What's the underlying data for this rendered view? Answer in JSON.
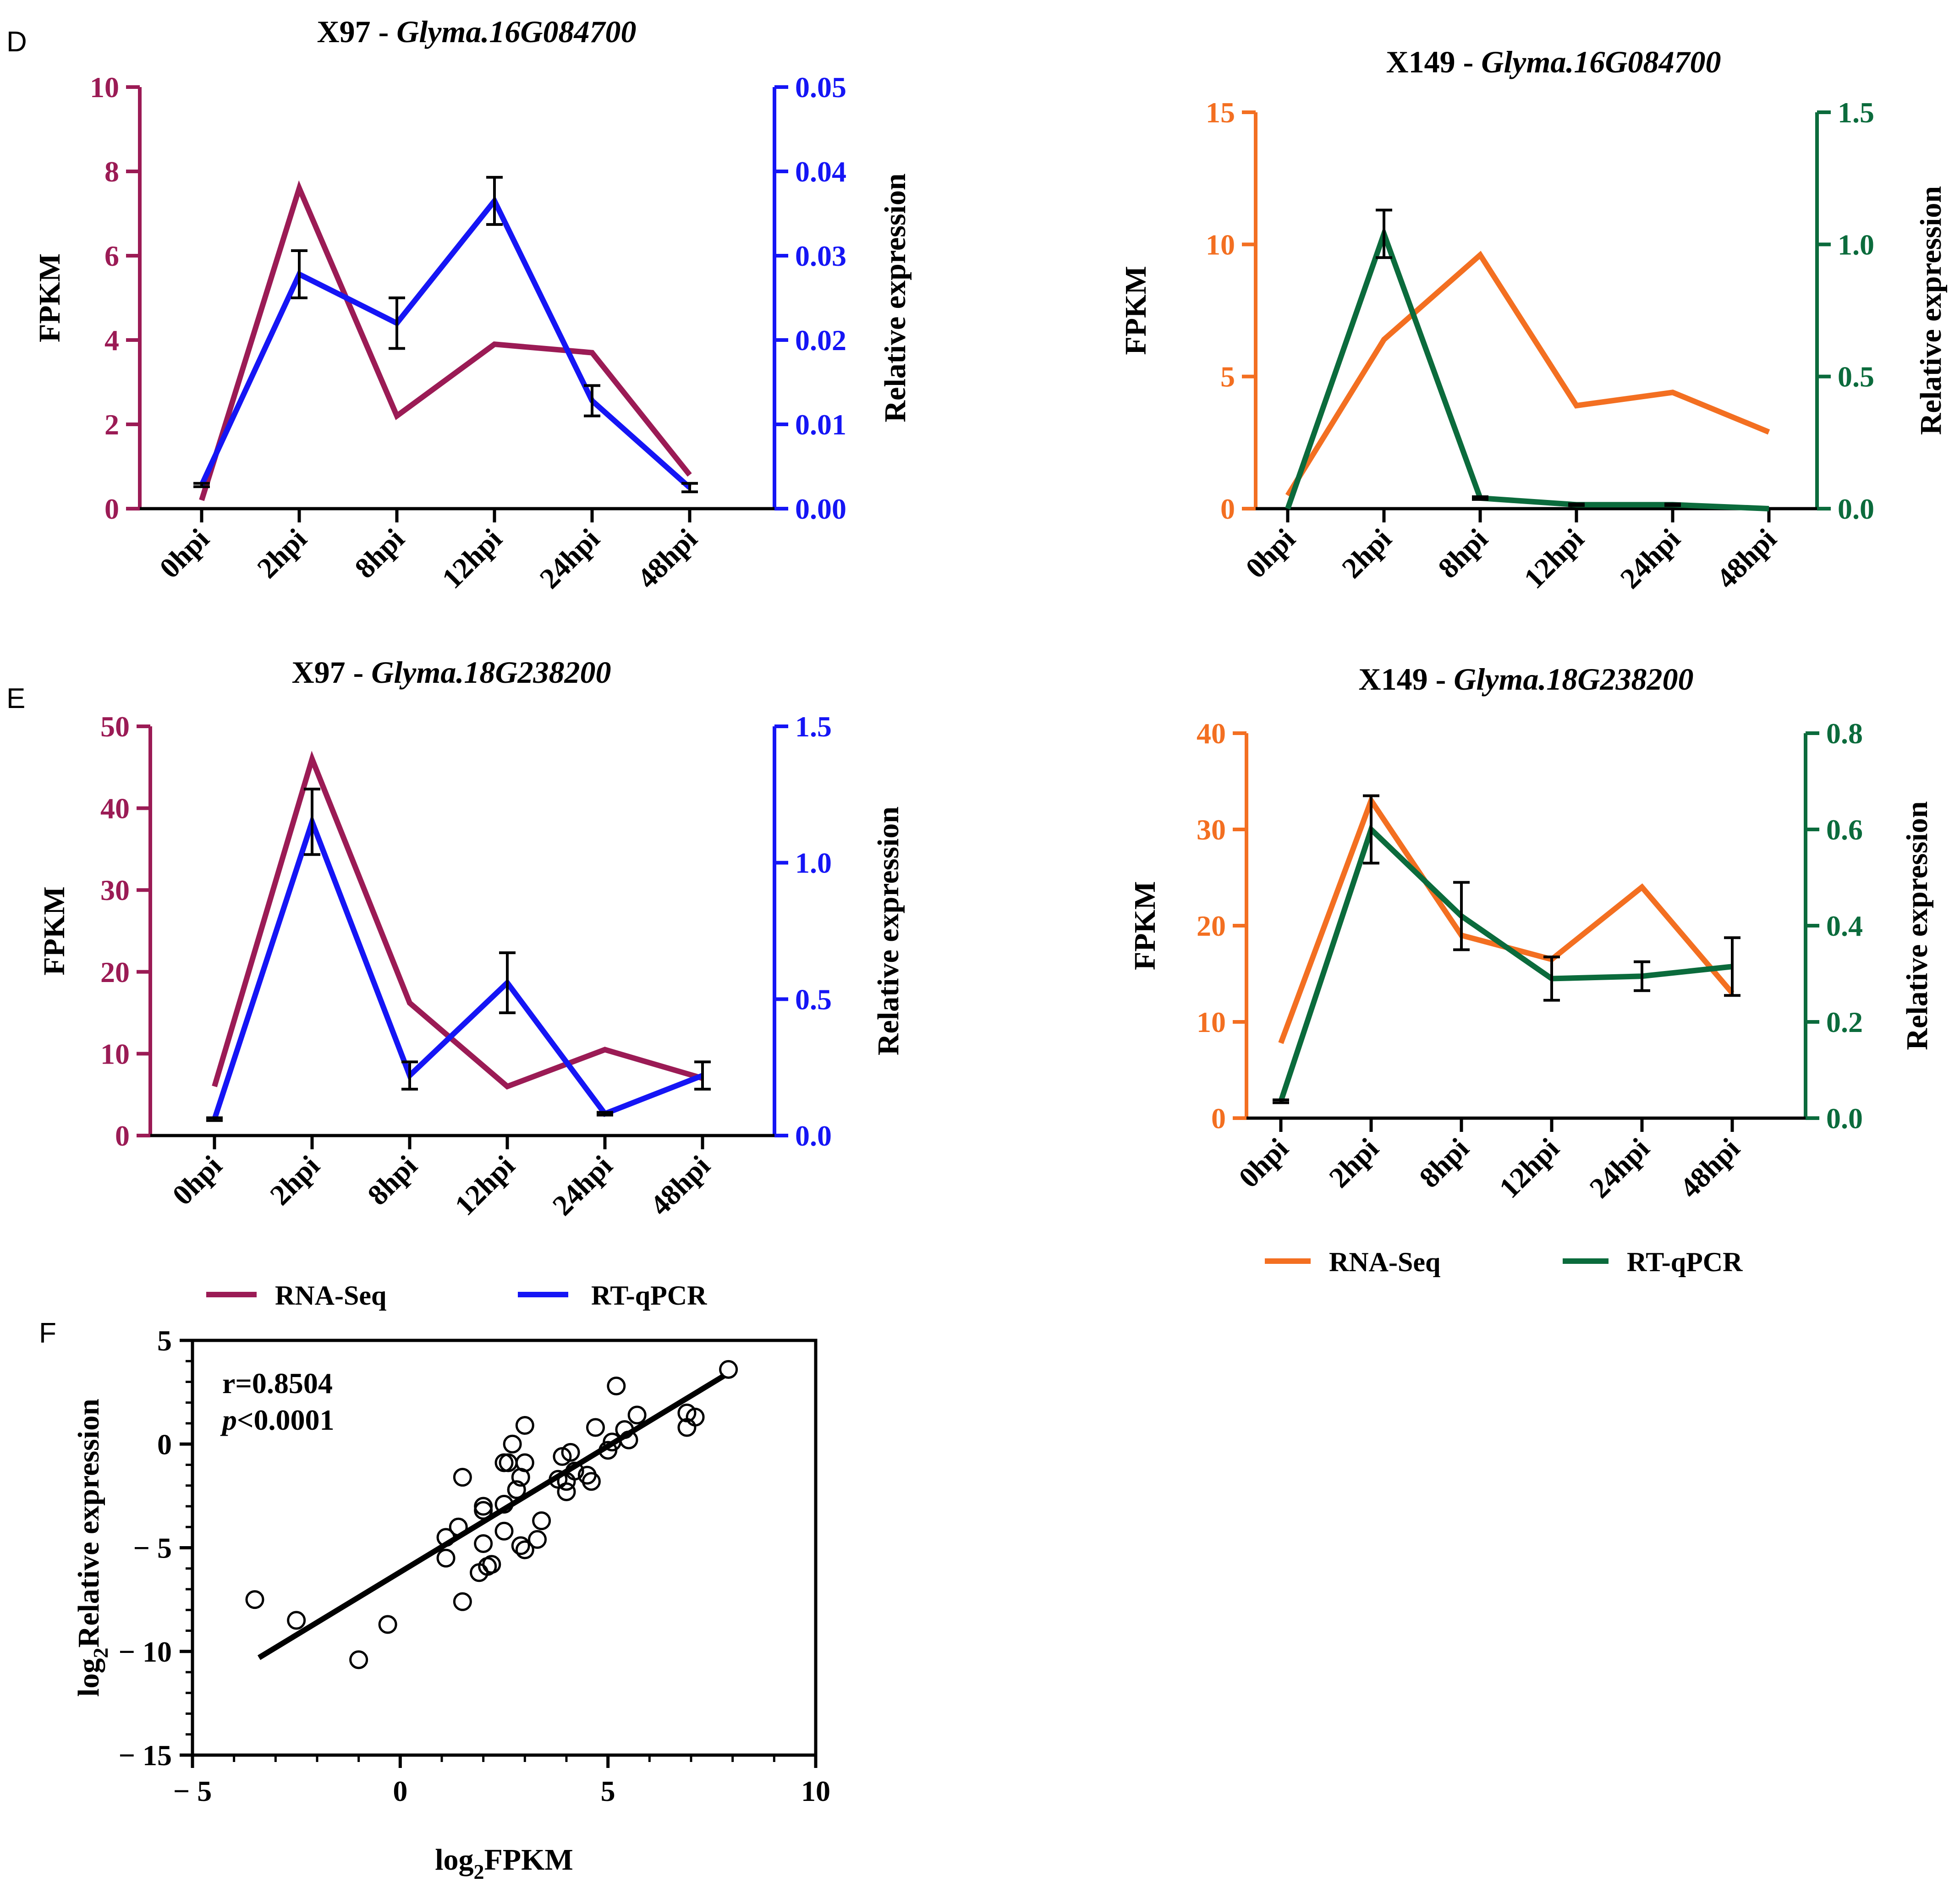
{
  "panel_letters": {
    "D": "D",
    "E": "E",
    "F": "F"
  },
  "legends": {
    "x97": [
      {
        "label": "RNA-Seq",
        "color": "#9b1b55"
      },
      {
        "label": "RT-qPCR",
        "color": "#1515f5"
      }
    ],
    "x149": [
      {
        "label": "RNA-Seq",
        "color": "#f36f21"
      },
      {
        "label": "RT-qPCR",
        "color": "#0b6b3c"
      }
    ]
  },
  "chart_data": [
    {
      "id": "D-left",
      "type": "line",
      "title_prefix": "X97 - ",
      "title_gene": "Glyma.16G084700",
      "categories": [
        "0hpi",
        "2hpi",
        "8hpi",
        "12hpi",
        "24hpi",
        "48hpi"
      ],
      "left_axis": {
        "label": "FPKM",
        "lim": [
          0,
          10
        ],
        "ticks": [
          0,
          2,
          4,
          6,
          8,
          10
        ],
        "tick_labels": [
          "0",
          "2",
          "4",
          "6",
          "8",
          "10"
        ],
        "color": "#9b1b55"
      },
      "right_axis": {
        "label": "Relative expression",
        "lim": [
          0,
          0.05
        ],
        "ticks": [
          0,
          0.01,
          0.02,
          0.03,
          0.04,
          0.05
        ],
        "tick_labels": [
          "0.00",
          "0.01",
          "0.02",
          "0.03",
          "0.04",
          "0.05"
        ],
        "color": "#1515f5"
      },
      "series": [
        {
          "name": "RNA-Seq",
          "axis": "left",
          "color": "#9b1b55",
          "values": [
            0.2,
            7.6,
            2.2,
            3.9,
            3.7,
            0.8
          ]
        },
        {
          "name": "RT-qPCR",
          "axis": "right",
          "color": "#1515f5",
          "values": [
            0.0028,
            0.0278,
            0.022,
            0.0365,
            0.0128,
            0.0025
          ],
          "errors": [
            0.0002,
            0.0028,
            0.003,
            0.0028,
            0.0018,
            0.0005
          ]
        }
      ]
    },
    {
      "id": "D-right",
      "type": "line",
      "title_prefix": "X149 - ",
      "title_gene": "Glyma.16G084700",
      "categories": [
        "0hpi",
        "2hpi",
        "8hpi",
        "12hpi",
        "24hpi",
        "48hpi"
      ],
      "left_axis": {
        "label": "FPKM",
        "lim": [
          0,
          15
        ],
        "ticks": [
          0,
          5,
          10,
          15
        ],
        "tick_labels": [
          "0",
          "5",
          "10",
          "15"
        ],
        "color": "#f36f21"
      },
      "right_axis": {
        "label": "Relative expression",
        "lim": [
          0,
          1.5
        ],
        "ticks": [
          0,
          0.5,
          1.0,
          1.5
        ],
        "tick_labels": [
          "0.0",
          "0.5",
          "1.0",
          "1.5"
        ],
        "color": "#0b6b3c"
      },
      "series": [
        {
          "name": "RNA-Seq",
          "axis": "left",
          "color": "#f36f21",
          "values": [
            0.5,
            6.4,
            9.6,
            3.9,
            4.4,
            2.9
          ]
        },
        {
          "name": "RT-qPCR",
          "axis": "right",
          "color": "#0b6b3c",
          "values": [
            0.0,
            1.04,
            0.04,
            0.015,
            0.015,
            0.0
          ],
          "errors": [
            0.0,
            0.09,
            0.005,
            0.003,
            0.003,
            0.0
          ]
        }
      ]
    },
    {
      "id": "E-left",
      "type": "line",
      "title_prefix": "X97 - ",
      "title_gene": "Glyma.18G238200",
      "categories": [
        "0hpi",
        "2hpi",
        "8hpi",
        "12hpi",
        "24hpi",
        "48hpi"
      ],
      "left_axis": {
        "label": "FPKM",
        "lim": [
          0,
          50
        ],
        "ticks": [
          0,
          10,
          20,
          30,
          40,
          50
        ],
        "tick_labels": [
          "0",
          "10",
          "20",
          "30",
          "40",
          "50"
        ],
        "color": "#9b1b55"
      },
      "right_axis": {
        "label": "Relative expression",
        "lim": [
          0,
          1.5
        ],
        "ticks": [
          0,
          0.5,
          1.0,
          1.5
        ],
        "tick_labels": [
          "0.0",
          "0.5",
          "1.0",
          "1.5"
        ],
        "color": "#1515f5"
      },
      "series": [
        {
          "name": "RNA-Seq",
          "axis": "left",
          "color": "#9b1b55",
          "values": [
            6.0,
            46.0,
            16.2,
            6.0,
            10.5,
            7.0
          ]
        },
        {
          "name": "RT-qPCR",
          "axis": "right",
          "color": "#1515f5",
          "values": [
            0.06,
            1.15,
            0.22,
            0.56,
            0.08,
            0.22
          ],
          "errors": [
            0.005,
            0.12,
            0.05,
            0.11,
            0.005,
            0.05
          ]
        }
      ]
    },
    {
      "id": "E-right",
      "type": "line",
      "title_prefix": "X149 - ",
      "title_gene": "Glyma.18G238200",
      "categories": [
        "0hpi",
        "2hpi",
        "8hpi",
        "12hpi",
        "24hpi",
        "48hpi"
      ],
      "left_axis": {
        "label": "FPKM",
        "lim": [
          0,
          40
        ],
        "ticks": [
          0,
          10,
          20,
          30,
          40
        ],
        "tick_labels": [
          "0",
          "10",
          "20",
          "30",
          "40"
        ],
        "color": "#f36f21"
      },
      "right_axis": {
        "label": "Relative expression",
        "lim": [
          0,
          0.8
        ],
        "ticks": [
          0,
          0.2,
          0.4,
          0.6,
          0.8
        ],
        "tick_labels": [
          "0.0",
          "0.2",
          "0.4",
          "0.6",
          "0.8"
        ],
        "color": "#0b6b3c"
      },
      "series": [
        {
          "name": "RNA-Seq",
          "axis": "left",
          "color": "#f36f21",
          "values": [
            7.8,
            33.0,
            19.0,
            16.5,
            24.0,
            13.0
          ]
        },
        {
          "name": "RT-qPCR",
          "axis": "right",
          "color": "#0b6b3c",
          "values": [
            0.035,
            0.6,
            0.42,
            0.29,
            0.295,
            0.315
          ],
          "errors": [
            0.003,
            0.07,
            0.07,
            0.045,
            0.03,
            0.06
          ]
        }
      ]
    },
    {
      "id": "F",
      "type": "scatter",
      "xlabel_base": "log",
      "xlabel_sub": "2",
      "xlabel_rest": "FPKM",
      "ylabel_base": "log",
      "ylabel_sub": "2",
      "ylabel_rest": "Relative expression",
      "xlim": [
        -5,
        10
      ],
      "ylim": [
        -15,
        5
      ],
      "xticks": [
        -5,
        0,
        5,
        10
      ],
      "xtick_labels": [
        "− 5",
        "0",
        "5",
        "10"
      ],
      "yticks": [
        -15,
        -10,
        -5,
        0,
        5
      ],
      "ytick_labels": [
        "− 15",
        "− 10",
        "− 5",
        "0",
        "5"
      ],
      "stat_r": "r=0.8504",
      "stat_p_italic": "p",
      "stat_p_rest": "<0.0001",
      "fit_line": {
        "x": [
          -3.4,
          7.8
        ],
        "y": [
          -10.3,
          3.3
        ]
      },
      "points": [
        [
          -3.5,
          -7.5
        ],
        [
          -2.5,
          -8.5
        ],
        [
          -1.0,
          -10.4
        ],
        [
          -0.3,
          -8.7
        ],
        [
          1.1,
          -5.5
        ],
        [
          1.1,
          -4.5
        ],
        [
          1.4,
          -4.0
        ],
        [
          1.5,
          -1.6
        ],
        [
          1.5,
          -7.6
        ],
        [
          1.9,
          -6.2
        ],
        [
          2.0,
          -4.8
        ],
        [
          2.0,
          -3.0
        ],
        [
          2.0,
          -3.2
        ],
        [
          2.1,
          -5.9
        ],
        [
          2.2,
          -5.8
        ],
        [
          2.5,
          -0.9
        ],
        [
          2.5,
          -2.9
        ],
        [
          2.5,
          -4.2
        ],
        [
          2.6,
          -0.9
        ],
        [
          2.7,
          0.0
        ],
        [
          2.8,
          -2.2
        ],
        [
          2.8,
          -2.2
        ],
        [
          2.9,
          -4.9
        ],
        [
          2.9,
          -1.6
        ],
        [
          3.0,
          -5.1
        ],
        [
          3.0,
          -0.9
        ],
        [
          3.0,
          0.9
        ],
        [
          3.3,
          -4.6
        ],
        [
          3.4,
          -3.7
        ],
        [
          3.8,
          -1.7
        ],
        [
          3.9,
          -0.6
        ],
        [
          4.0,
          -1.8
        ],
        [
          4.0,
          -2.3
        ],
        [
          4.1,
          -0.4
        ],
        [
          4.2,
          -1.3
        ],
        [
          4.5,
          -1.5
        ],
        [
          4.6,
          -1.8
        ],
        [
          4.7,
          0.8
        ],
        [
          5.0,
          -0.3
        ],
        [
          5.1,
          0.1
        ],
        [
          5.2,
          2.8
        ],
        [
          5.4,
          0.7
        ],
        [
          5.5,
          0.2
        ],
        [
          5.7,
          1.4
        ],
        [
          6.9,
          0.8
        ],
        [
          6.9,
          1.5
        ],
        [
          7.1,
          1.3
        ],
        [
          7.9,
          3.6
        ]
      ]
    }
  ]
}
